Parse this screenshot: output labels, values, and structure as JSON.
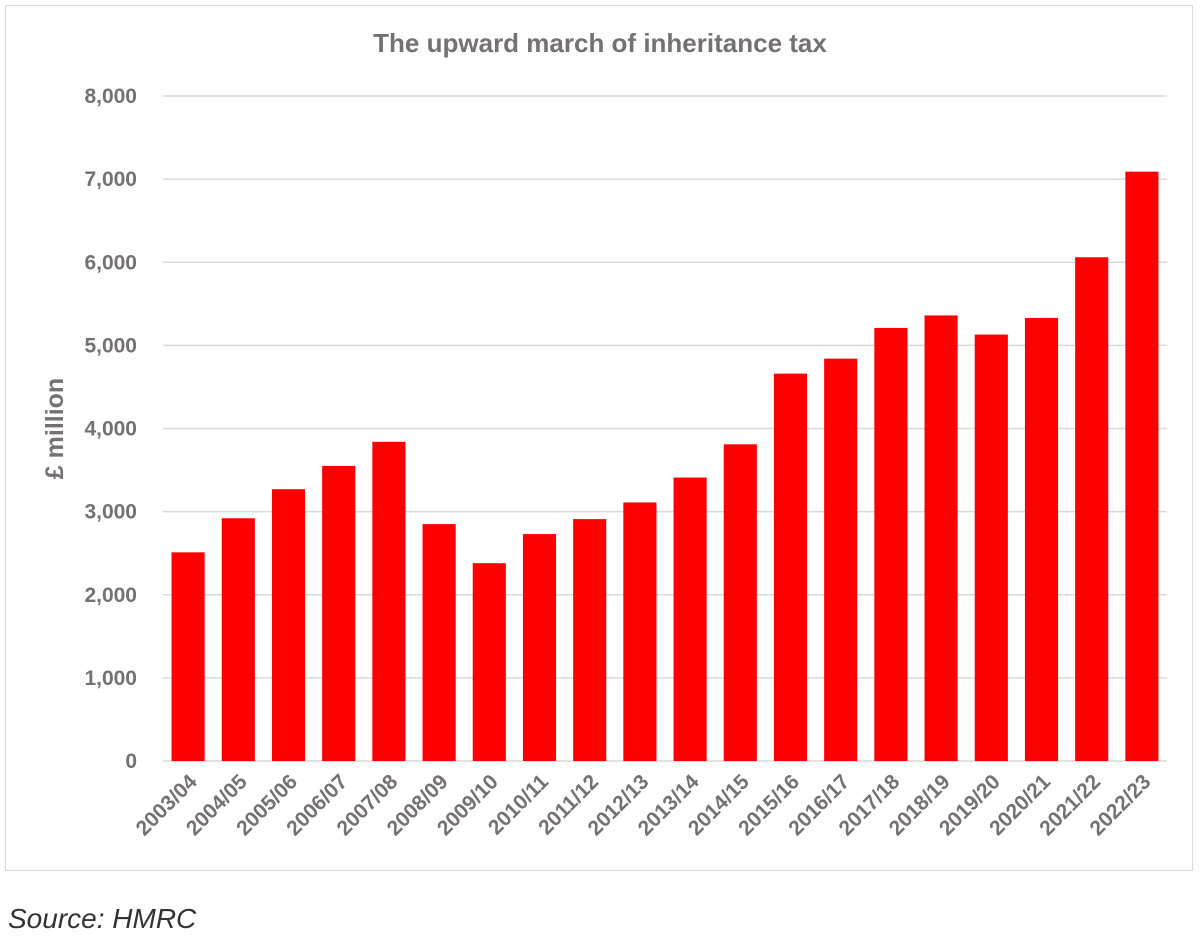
{
  "chart_data": {
    "type": "bar",
    "title": "The upward march of inheritance tax",
    "xlabel": "",
    "ylabel": "£ million",
    "ylim": [
      0,
      8000
    ],
    "yticks": [
      "0",
      "1,000",
      "2,000",
      "3,000",
      "4,000",
      "5,000",
      "6,000",
      "7,000",
      "8,000"
    ],
    "grid": true,
    "bar_color": "#ff0000",
    "categories": [
      "2003/04",
      "2004/05",
      "2005/06",
      "2006/07",
      "2007/08",
      "2008/09",
      "2009/10",
      "2010/11",
      "2011/12",
      "2012/13",
      "2013/14",
      "2014/15",
      "2015/16",
      "2016/17",
      "2017/18",
      "2018/19",
      "2019/20",
      "2020/21",
      "2021/22",
      "2022/23"
    ],
    "values": [
      2510,
      2920,
      3270,
      3550,
      3840,
      2850,
      2380,
      2730,
      2910,
      3110,
      3410,
      3810,
      4660,
      4840,
      5210,
      5360,
      5130,
      5330,
      6060,
      7090
    ]
  },
  "source": "Source: HMRC"
}
